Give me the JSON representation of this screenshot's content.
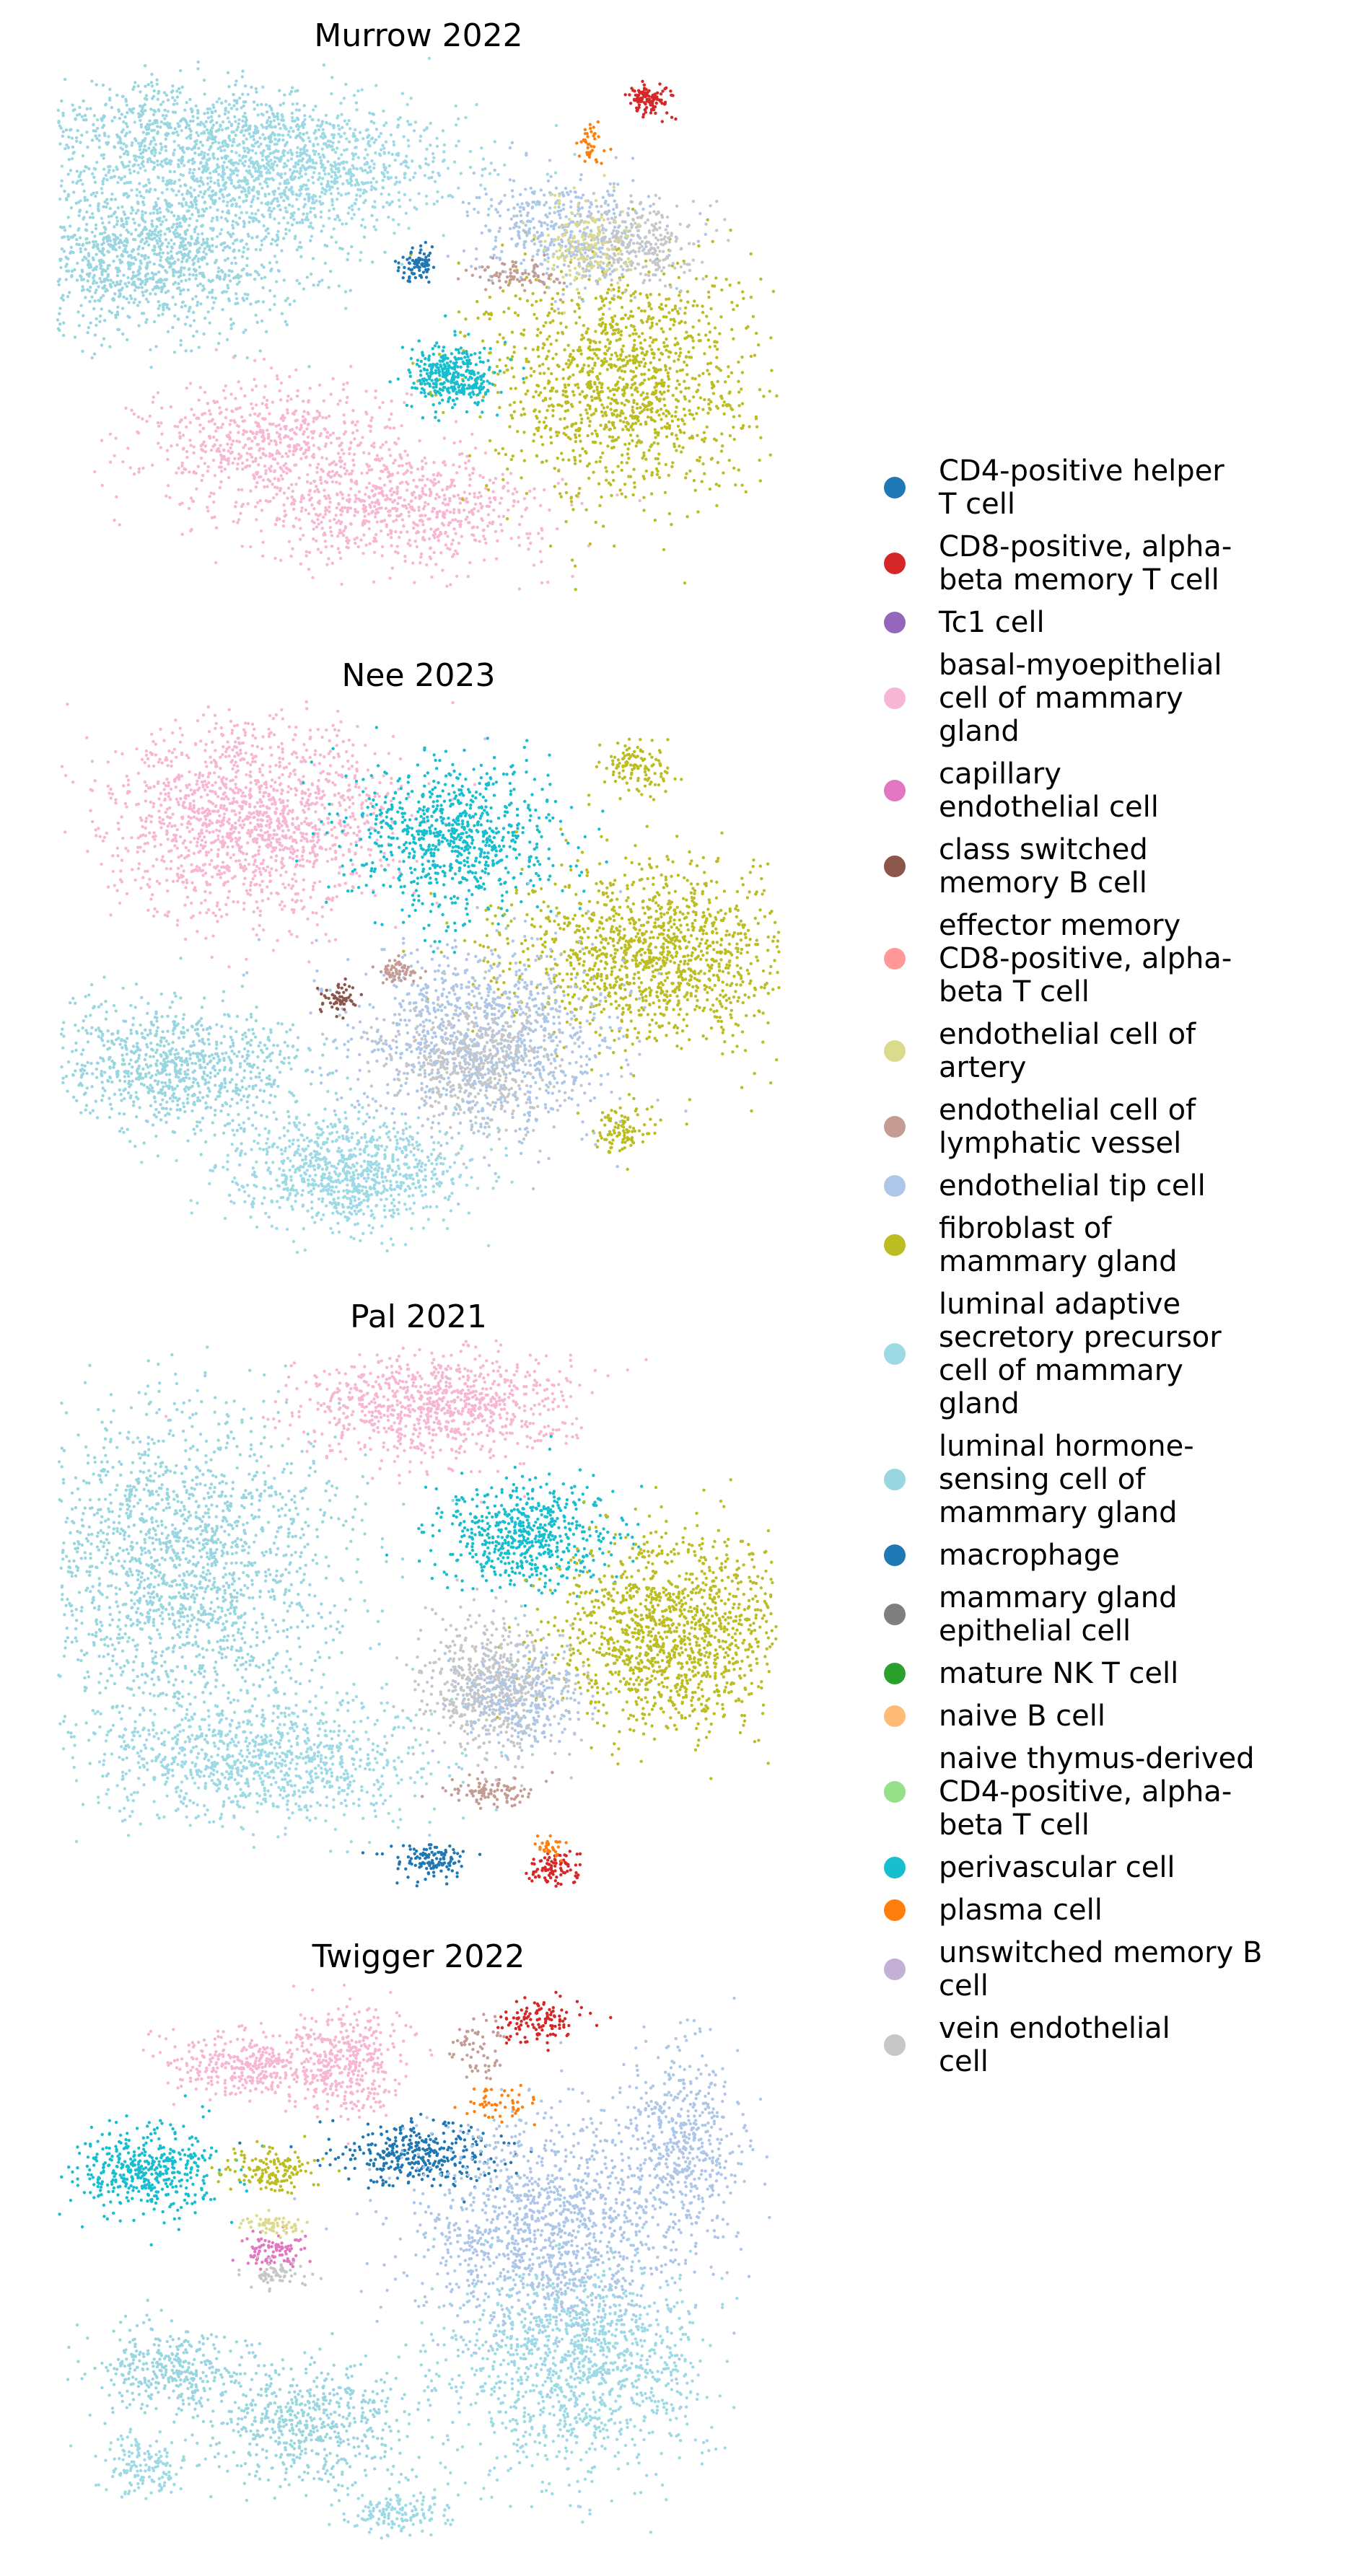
{
  "chart_data": [
    {
      "type": "scatter",
      "title": "Murrow 2022",
      "clusters": [
        {
          "category": "luminal adaptive secretory precursor cell of mammary gland",
          "x": 0.3,
          "y": 0.82,
          "sx": 0.13,
          "sy": 0.06,
          "n": 1400
        },
        {
          "category": "luminal hormone-sensing cell of mammary gland",
          "x": 0.12,
          "y": 0.65,
          "sx": 0.11,
          "sy": 0.07,
          "n": 1300
        },
        {
          "category": "luminal hormone-sensing cell of mammary gland",
          "x": 0.15,
          "y": 0.9,
          "sx": 0.12,
          "sy": 0.04,
          "n": 500
        },
        {
          "category": "basal-myoepithelial cell of mammary gland",
          "x": 0.3,
          "y": 0.3,
          "sx": 0.09,
          "sy": 0.06,
          "n": 700
        },
        {
          "category": "basal-myoepithelial cell of mammary gland",
          "x": 0.48,
          "y": 0.18,
          "sx": 0.1,
          "sy": 0.05,
          "n": 700
        },
        {
          "category": "fibroblast of mammary gland",
          "x": 0.78,
          "y": 0.42,
          "sx": 0.09,
          "sy": 0.11,
          "n": 1300
        },
        {
          "category": "perivascular cell",
          "x": 0.55,
          "y": 0.43,
          "sx": 0.03,
          "sy": 0.03,
          "n": 350
        },
        {
          "category": "endothelial tip cell",
          "x": 0.7,
          "y": 0.7,
          "sx": 0.06,
          "sy": 0.05,
          "n": 450
        },
        {
          "category": "vein endothelial cell",
          "x": 0.8,
          "y": 0.68,
          "sx": 0.04,
          "sy": 0.04,
          "n": 300
        },
        {
          "category": "endothelial cell of artery",
          "x": 0.73,
          "y": 0.68,
          "sx": 0.03,
          "sy": 0.04,
          "n": 160
        },
        {
          "category": "endothelial cell of lymphatic vessel",
          "x": 0.64,
          "y": 0.62,
          "sx": 0.03,
          "sy": 0.015,
          "n": 80
        },
        {
          "category": "macrophage",
          "x": 0.5,
          "y": 0.64,
          "sx": 0.012,
          "sy": 0.015,
          "n": 80
        },
        {
          "category": "CD8-positive, alpha-beta memory T cell",
          "x": 0.82,
          "y": 0.95,
          "sx": 0.015,
          "sy": 0.015,
          "n": 120
        },
        {
          "category": "plasma cell",
          "x": 0.74,
          "y": 0.86,
          "sx": 0.01,
          "sy": 0.02,
          "n": 40
        }
      ]
    },
    {
      "type": "scatter",
      "title": "Nee 2023",
      "clusters": [
        {
          "category": "basal-myoepithelial cell of mammary gland",
          "x": 0.27,
          "y": 0.8,
          "sx": 0.1,
          "sy": 0.09,
          "n": 1500
        },
        {
          "category": "perivascular cell",
          "x": 0.55,
          "y": 0.77,
          "sx": 0.07,
          "sy": 0.07,
          "n": 800
        },
        {
          "category": "fibroblast of mammary gland",
          "x": 0.83,
          "y": 0.55,
          "sx": 0.1,
          "sy": 0.08,
          "n": 1300
        },
        {
          "category": "fibroblast of mammary gland",
          "x": 0.8,
          "y": 0.9,
          "sx": 0.025,
          "sy": 0.025,
          "n": 120
        },
        {
          "category": "fibroblast of mammary gland",
          "x": 0.78,
          "y": 0.22,
          "sx": 0.02,
          "sy": 0.025,
          "n": 100
        },
        {
          "category": "endothelial tip cell",
          "x": 0.59,
          "y": 0.39,
          "sx": 0.09,
          "sy": 0.09,
          "n": 1100
        },
        {
          "category": "vein endothelial cell",
          "x": 0.58,
          "y": 0.34,
          "sx": 0.06,
          "sy": 0.06,
          "n": 500
        },
        {
          "category": "luminal hormone-sensing cell of mammary gland",
          "x": 0.17,
          "y": 0.34,
          "sx": 0.09,
          "sy": 0.06,
          "n": 900
        },
        {
          "category": "luminal adaptive secretory precursor cell of mammary gland",
          "x": 0.4,
          "y": 0.14,
          "sx": 0.08,
          "sy": 0.05,
          "n": 900
        },
        {
          "category": "class switched memory B cell",
          "x": 0.39,
          "y": 0.47,
          "sx": 0.012,
          "sy": 0.015,
          "n": 60
        },
        {
          "category": "endothelial cell of lymphatic vessel",
          "x": 0.47,
          "y": 0.52,
          "sx": 0.015,
          "sy": 0.012,
          "n": 60
        }
      ]
    },
    {
      "type": "scatter",
      "title": "Pal 2021",
      "clusters": [
        {
          "category": "luminal hormone-sensing cell of mammary gland",
          "x": 0.17,
          "y": 0.6,
          "sx": 0.11,
          "sy": 0.15,
          "n": 1900
        },
        {
          "category": "luminal adaptive secretory precursor cell of mammary gland",
          "x": 0.28,
          "y": 0.24,
          "sx": 0.12,
          "sy": 0.06,
          "n": 1000
        },
        {
          "category": "basal-myoepithelial cell of mammary gland",
          "x": 0.52,
          "y": 0.9,
          "sx": 0.09,
          "sy": 0.05,
          "n": 900
        },
        {
          "category": "perivascular cell",
          "x": 0.65,
          "y": 0.66,
          "sx": 0.06,
          "sy": 0.05,
          "n": 600
        },
        {
          "category": "fibroblast of mammary gland",
          "x": 0.85,
          "y": 0.48,
          "sx": 0.08,
          "sy": 0.09,
          "n": 1300
        },
        {
          "category": "vein endothelial cell",
          "x": 0.6,
          "y": 0.38,
          "sx": 0.05,
          "sy": 0.06,
          "n": 600
        },
        {
          "category": "endothelial tip cell",
          "x": 0.64,
          "y": 0.36,
          "sx": 0.04,
          "sy": 0.05,
          "n": 300
        },
        {
          "category": "endothelial cell of lymphatic vessel",
          "x": 0.6,
          "y": 0.18,
          "sx": 0.03,
          "sy": 0.015,
          "n": 100
        },
        {
          "category": "macrophage",
          "x": 0.52,
          "y": 0.05,
          "sx": 0.025,
          "sy": 0.015,
          "n": 120
        },
        {
          "category": "CD8-positive, alpha-beta memory T cell",
          "x": 0.69,
          "y": 0.04,
          "sx": 0.02,
          "sy": 0.015,
          "n": 90
        },
        {
          "category": "plasma cell",
          "x": 0.68,
          "y": 0.08,
          "sx": 0.01,
          "sy": 0.01,
          "n": 30
        }
      ]
    },
    {
      "type": "scatter",
      "title": "Twigger 2022",
      "clusters": [
        {
          "category": "basal-myoepithelial cell of mammary gland",
          "x": 0.26,
          "y": 0.87,
          "sx": 0.05,
          "sy": 0.03,
          "n": 350
        },
        {
          "category": "basal-myoepithelial cell of mammary gland",
          "x": 0.4,
          "y": 0.87,
          "sx": 0.04,
          "sy": 0.05,
          "n": 400
        },
        {
          "category": "perivascular cell",
          "x": 0.12,
          "y": 0.67,
          "sx": 0.05,
          "sy": 0.04,
          "n": 450
        },
        {
          "category": "fibroblast of mammary gland",
          "x": 0.3,
          "y": 0.67,
          "sx": 0.03,
          "sy": 0.02,
          "n": 150
        },
        {
          "category": "macrophage",
          "x": 0.5,
          "y": 0.7,
          "sx": 0.06,
          "sy": 0.03,
          "n": 350
        },
        {
          "category": "capillary endothelial cell",
          "x": 0.3,
          "y": 0.52,
          "sx": 0.02,
          "sy": 0.02,
          "n": 100
        },
        {
          "category": "endothelial cell of artery",
          "x": 0.3,
          "y": 0.57,
          "sx": 0.02,
          "sy": 0.012,
          "n": 60
        },
        {
          "category": "vein endothelial cell",
          "x": 0.31,
          "y": 0.48,
          "sx": 0.02,
          "sy": 0.015,
          "n": 60
        },
        {
          "category": "endothelial tip cell",
          "x": 0.68,
          "y": 0.55,
          "sx": 0.09,
          "sy": 0.1,
          "n": 1300
        },
        {
          "category": "endothelial tip cell",
          "x": 0.87,
          "y": 0.72,
          "sx": 0.04,
          "sy": 0.09,
          "n": 500
        },
        {
          "category": "luminal adaptive secretory precursor cell of mammary gland",
          "x": 0.72,
          "y": 0.3,
          "sx": 0.09,
          "sy": 0.1,
          "n": 1200
        },
        {
          "category": "luminal hormone-sensing cell of mammary gland",
          "x": 0.15,
          "y": 0.3,
          "sx": 0.05,
          "sy": 0.04,
          "n": 350
        },
        {
          "category": "luminal hormone-sensing cell of mammary gland",
          "x": 0.35,
          "y": 0.2,
          "sx": 0.07,
          "sy": 0.06,
          "n": 600
        },
        {
          "category": "luminal adaptive secretory precursor cell of mammary gland",
          "x": 0.12,
          "y": 0.12,
          "sx": 0.03,
          "sy": 0.03,
          "n": 150
        },
        {
          "category": "luminal adaptive secretory precursor cell of mammary gland",
          "x": 0.47,
          "y": 0.03,
          "sx": 0.04,
          "sy": 0.02,
          "n": 150
        },
        {
          "category": "CD8-positive, alpha-beta memory T cell",
          "x": 0.67,
          "y": 0.95,
          "sx": 0.03,
          "sy": 0.02,
          "n": 120
        },
        {
          "category": "plasma cell",
          "x": 0.62,
          "y": 0.8,
          "sx": 0.03,
          "sy": 0.02,
          "n": 50
        },
        {
          "category": "endothelial cell of lymphatic vessel",
          "x": 0.58,
          "y": 0.9,
          "sx": 0.02,
          "sy": 0.03,
          "n": 60
        }
      ]
    }
  ],
  "legend": [
    {
      "label": "CD4-positive helper\nT cell",
      "color": "#1f77b4"
    },
    {
      "label": "CD8-positive, alpha-\nbeta memory T cell",
      "color": "#d62728"
    },
    {
      "label": "Tc1 cell",
      "color": "#9467bd"
    },
    {
      "label": "basal-myoepithelial\ncell of mammary\ngland",
      "color": "#f7b6d2"
    },
    {
      "label": "capillary\nendothelial cell",
      "color": "#e377c2"
    },
    {
      "label": "class switched\nmemory B cell",
      "color": "#8c564b"
    },
    {
      "label": "effector memory\nCD8-positive, alpha-\nbeta T cell",
      "color": "#ff9896"
    },
    {
      "label": "endothelial cell of\nartery",
      "color": "#dbdb8d"
    },
    {
      "label": "endothelial cell of\nlymphatic vessel",
      "color": "#c49c94"
    },
    {
      "label": "endothelial tip cell",
      "color": "#aec7e8"
    },
    {
      "label": "fibroblast of\nmammary gland",
      "color": "#bcbd22"
    },
    {
      "label": "luminal adaptive\nsecretory precursor\ncell of mammary\ngland",
      "color": "#9edae5"
    },
    {
      "label": "luminal hormone-\nsensing cell of\nmammary gland",
      "color": "#9ad6e0"
    },
    {
      "label": "macrophage",
      "color": "#1f77b4"
    },
    {
      "label": "mammary gland\nepithelial cell",
      "color": "#7f7f7f"
    },
    {
      "label": "mature NK T cell",
      "color": "#2ca02c"
    },
    {
      "label": "naive B cell",
      "color": "#ffbb78"
    },
    {
      "label": "naive thymus-derived\nCD4-positive, alpha-\nbeta T cell",
      "color": "#98df8a"
    },
    {
      "label": "perivascular cell",
      "color": "#17becf"
    },
    {
      "label": "plasma cell",
      "color": "#ff7f0e"
    },
    {
      "label": "unswitched memory B\ncell",
      "color": "#c5b0d5"
    },
    {
      "label": "vein endothelial\ncell",
      "color": "#c7c7c7"
    }
  ]
}
